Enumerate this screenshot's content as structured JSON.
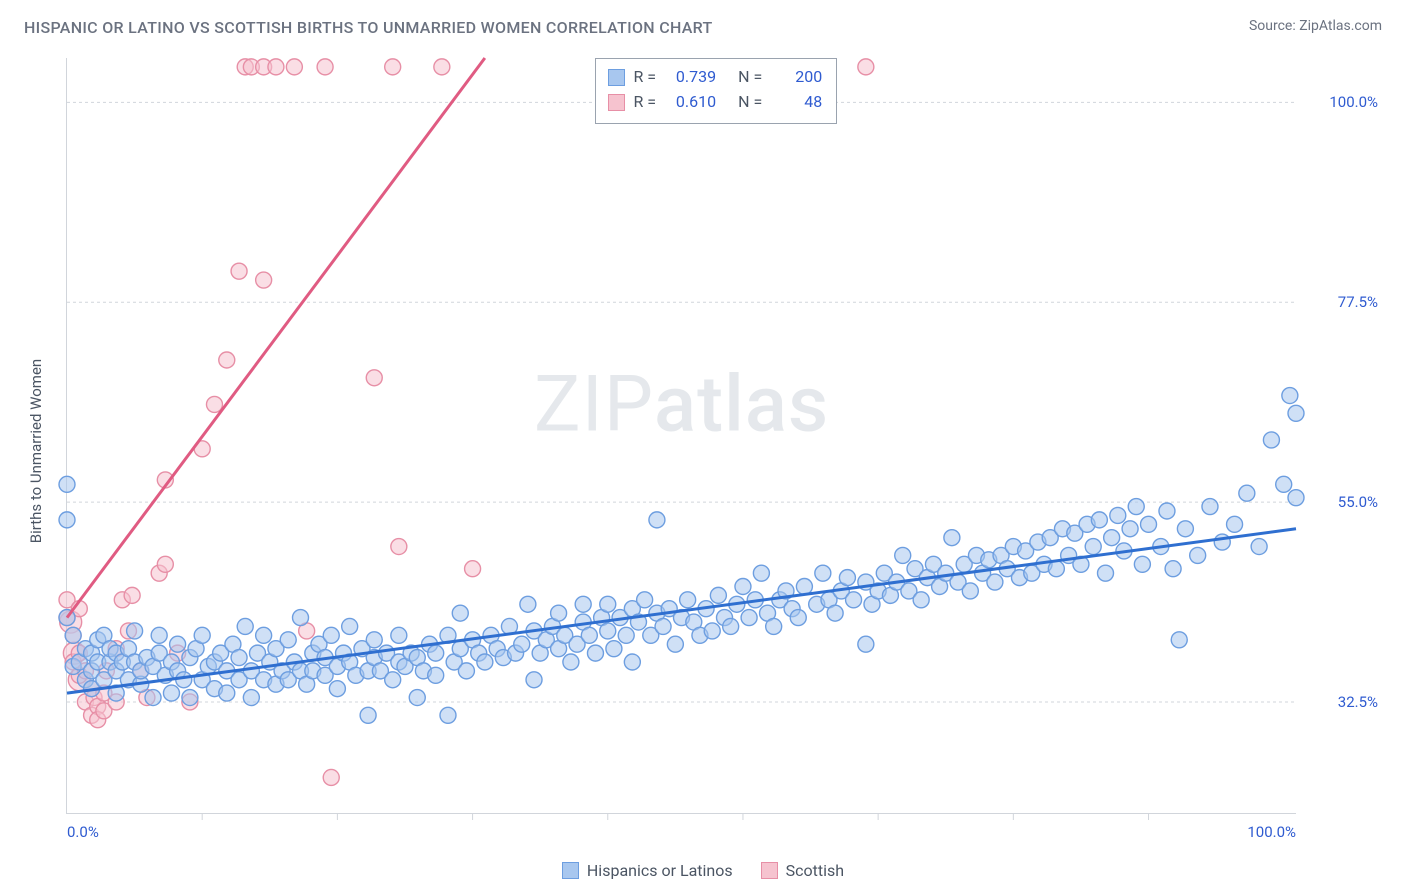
{
  "title": "HISPANIC OR LATINO VS SCOTTISH BIRTHS TO UNMARRIED WOMEN CORRELATION CHART",
  "source_label": "Source:",
  "source_site": "ZipAtlas.com",
  "watermark": "ZIPatlas",
  "ylabel": "Births to Unmarried Women",
  "chart": {
    "type": "scatter",
    "xlim": [
      0,
      100
    ],
    "ylim": [
      20,
      105
    ],
    "yticks": [
      32.5,
      55.0,
      77.5,
      100.0
    ],
    "ytick_labels": [
      "32.5%",
      "55.0%",
      "77.5%",
      "100.0%"
    ],
    "xticks_pos": [
      0,
      100
    ],
    "xtick_labels": [
      "0.0%",
      "100.0%"
    ],
    "xticks_minor": [
      11,
      22,
      33,
      44,
      55,
      66,
      77,
      88
    ],
    "grid_color": "#d1d5db",
    "grid_dash": "3 3",
    "background_color": "#ffffff",
    "axis_color": "#d1d5db",
    "tick_label_color": "#2f5bd0",
    "marker_radius": 8,
    "marker_radius_alt": 11,
    "marker_opacity": 0.55,
    "trend_width": 3,
    "colors": {
      "blue_fill": "#a8c7ef",
      "blue_stroke": "#6d9ee0",
      "blue_trend": "#2f6fd0",
      "pink_fill": "#f6c3cf",
      "pink_stroke": "#e78fa6",
      "pink_trend": "#e05b82"
    }
  },
  "series": {
    "blue": {
      "label": "Hispanics or Latinos",
      "R": "0.739",
      "N": "200",
      "trend": {
        "x1": 0,
        "y1": 33.5,
        "x2": 100,
        "y2": 52.0
      },
      "points": [
        [
          0,
          57
        ],
        [
          0,
          53
        ],
        [
          0,
          42
        ],
        [
          0.5,
          40
        ],
        [
          0.5,
          36.5
        ],
        [
          1,
          37
        ],
        [
          1.5,
          35
        ],
        [
          1.5,
          38.5
        ],
        [
          2,
          34
        ],
        [
          2,
          36
        ],
        [
          2,
          38
        ],
        [
          2.5,
          37
        ],
        [
          2.5,
          39.5
        ],
        [
          3,
          35
        ],
        [
          3,
          40
        ],
        [
          3.5,
          37
        ],
        [
          3.5,
          38.5
        ],
        [
          4,
          33.5
        ],
        [
          4,
          36
        ],
        [
          4,
          38
        ],
        [
          4.5,
          37
        ],
        [
          5,
          35
        ],
        [
          5,
          38.5
        ],
        [
          5.5,
          40.5
        ],
        [
          5.5,
          37
        ],
        [
          6,
          34.5
        ],
        [
          6,
          36
        ],
        [
          6.5,
          37.5
        ],
        [
          7,
          33
        ],
        [
          7,
          36.5
        ],
        [
          7.5,
          38
        ],
        [
          7.5,
          40
        ],
        [
          8,
          35.5
        ],
        [
          8.5,
          33.5
        ],
        [
          8.5,
          37
        ],
        [
          9,
          36
        ],
        [
          9,
          39
        ],
        [
          9.5,
          35
        ],
        [
          10,
          33
        ],
        [
          10,
          37.5
        ],
        [
          10.5,
          38.5
        ],
        [
          11,
          35
        ],
        [
          11,
          40
        ],
        [
          11.5,
          36.5
        ],
        [
          12,
          34
        ],
        [
          12,
          37
        ],
        [
          12.5,
          38
        ],
        [
          13,
          33.5
        ],
        [
          13,
          36
        ],
        [
          13.5,
          39
        ],
        [
          14,
          35
        ],
        [
          14,
          37.5
        ],
        [
          14.5,
          41
        ],
        [
          15,
          33
        ],
        [
          15,
          36
        ],
        [
          15.5,
          38
        ],
        [
          16,
          35
        ],
        [
          16,
          40
        ],
        [
          16.5,
          37
        ],
        [
          17,
          34.5
        ],
        [
          17,
          38.5
        ],
        [
          17.5,
          36
        ],
        [
          18,
          39.5
        ],
        [
          18,
          35
        ],
        [
          18.5,
          37
        ],
        [
          19,
          42
        ],
        [
          19,
          36
        ],
        [
          19.5,
          34.5
        ],
        [
          20,
          38
        ],
        [
          20,
          36
        ],
        [
          20.5,
          39
        ],
        [
          21,
          35.5
        ],
        [
          21,
          37.5
        ],
        [
          21.5,
          40
        ],
        [
          22,
          34
        ],
        [
          22,
          36.5
        ],
        [
          22.5,
          38
        ],
        [
          23,
          37
        ],
        [
          23,
          41
        ],
        [
          23.5,
          35.5
        ],
        [
          24,
          38.5
        ],
        [
          24.5,
          31
        ],
        [
          24.5,
          36
        ],
        [
          25,
          37.5
        ],
        [
          25,
          39.5
        ],
        [
          25.5,
          36
        ],
        [
          26,
          38
        ],
        [
          26.5,
          35
        ],
        [
          27,
          37
        ],
        [
          27,
          40
        ],
        [
          27.5,
          36.5
        ],
        [
          28,
          38
        ],
        [
          28.5,
          33
        ],
        [
          28.5,
          37.5
        ],
        [
          29,
          36
        ],
        [
          29.5,
          39
        ],
        [
          30,
          38
        ],
        [
          30,
          35.5
        ],
        [
          31,
          40
        ],
        [
          31,
          31
        ],
        [
          31.5,
          37
        ],
        [
          32,
          38.5
        ],
        [
          32,
          42.5
        ],
        [
          32.5,
          36
        ],
        [
          33,
          39.5
        ],
        [
          33.5,
          38
        ],
        [
          34,
          37
        ],
        [
          34.5,
          40
        ],
        [
          35,
          38.5
        ],
        [
          35.5,
          37.5
        ],
        [
          36,
          41
        ],
        [
          36.5,
          38
        ],
        [
          37,
          39
        ],
        [
          37.5,
          43.5
        ],
        [
          38,
          40.5
        ],
        [
          38,
          35
        ],
        [
          38.5,
          38
        ],
        [
          39,
          39.5
        ],
        [
          39.5,
          41
        ],
        [
          40,
          42.5
        ],
        [
          40,
          38.5
        ],
        [
          40.5,
          40
        ],
        [
          41,
          37
        ],
        [
          41.5,
          39
        ],
        [
          42,
          41.5
        ],
        [
          42,
          43.5
        ],
        [
          42.5,
          40
        ],
        [
          43,
          38
        ],
        [
          43.5,
          42
        ],
        [
          44,
          43.5
        ],
        [
          44,
          40.5
        ],
        [
          44.5,
          38.5
        ],
        [
          45,
          42
        ],
        [
          45.5,
          40
        ],
        [
          46,
          43
        ],
        [
          46,
          37
        ],
        [
          46.5,
          41.5
        ],
        [
          47,
          44
        ],
        [
          47.5,
          40
        ],
        [
          48,
          42.5
        ],
        [
          48,
          53
        ],
        [
          48.5,
          41
        ],
        [
          49,
          43
        ],
        [
          49.5,
          39
        ],
        [
          50,
          42
        ],
        [
          50.5,
          44
        ],
        [
          51,
          41.5
        ],
        [
          51.5,
          40
        ],
        [
          52,
          43
        ],
        [
          52.5,
          40.5
        ],
        [
          53,
          44.5
        ],
        [
          53.5,
          42
        ],
        [
          54,
          41
        ],
        [
          54.5,
          43.5
        ],
        [
          55,
          45.5
        ],
        [
          55.5,
          42
        ],
        [
          56,
          44
        ],
        [
          56.5,
          47
        ],
        [
          57,
          42.5
        ],
        [
          57.5,
          41
        ],
        [
          58,
          44
        ],
        [
          58.5,
          45
        ],
        [
          59,
          43
        ],
        [
          59.5,
          42
        ],
        [
          60,
          45.5
        ],
        [
          61,
          43.5
        ],
        [
          61.5,
          47
        ],
        [
          62,
          44
        ],
        [
          62.5,
          42.5
        ],
        [
          63,
          45
        ],
        [
          63.5,
          46.5
        ],
        [
          64,
          44
        ],
        [
          65,
          39
        ],
        [
          65,
          46
        ],
        [
          65.5,
          43.5
        ],
        [
          66,
          45
        ],
        [
          66.5,
          47
        ],
        [
          67,
          44.5
        ],
        [
          67.5,
          46
        ],
        [
          68,
          49
        ],
        [
          68.5,
          45
        ],
        [
          69,
          47.5
        ],
        [
          69.5,
          44
        ],
        [
          70,
          46.5
        ],
        [
          70.5,
          48
        ],
        [
          71,
          45.5
        ],
        [
          71.5,
          47
        ],
        [
          72,
          51
        ],
        [
          72.5,
          46
        ],
        [
          73,
          48
        ],
        [
          73.5,
          45
        ],
        [
          74,
          49
        ],
        [
          74.5,
          47
        ],
        [
          75,
          48.5
        ],
        [
          75.5,
          46
        ],
        [
          76,
          49
        ],
        [
          76.5,
          47.5
        ],
        [
          77,
          50
        ],
        [
          77.5,
          46.5
        ],
        [
          78,
          49.5
        ],
        [
          78.5,
          47
        ],
        [
          79,
          50.5
        ],
        [
          79.5,
          48
        ],
        [
          80,
          51
        ],
        [
          80.5,
          47.5
        ],
        [
          81,
          52
        ],
        [
          81.5,
          49
        ],
        [
          82,
          51.5
        ],
        [
          82.5,
          48
        ],
        [
          83,
          52.5
        ],
        [
          83.5,
          50
        ],
        [
          84,
          53
        ],
        [
          84.5,
          47
        ],
        [
          85,
          51
        ],
        [
          85.5,
          53.5
        ],
        [
          86,
          49.5
        ],
        [
          86.5,
          52
        ],
        [
          87,
          54.5
        ],
        [
          87.5,
          48
        ],
        [
          88,
          52.5
        ],
        [
          89,
          50
        ],
        [
          89.5,
          54
        ],
        [
          90,
          47.5
        ],
        [
          90.5,
          39.5
        ],
        [
          91,
          52
        ],
        [
          92,
          49
        ],
        [
          93,
          54.5
        ],
        [
          94,
          50.5
        ],
        [
          95,
          52.5
        ],
        [
          96,
          56
        ],
        [
          97,
          50
        ],
        [
          98,
          62
        ],
        [
          99,
          57
        ],
        [
          99.5,
          67
        ],
        [
          100,
          65
        ],
        [
          100,
          55.5
        ]
      ]
    },
    "pink": {
      "label": "Scottish",
      "R": "0.610",
      "N": "48",
      "trend": {
        "x1": 0,
        "y1": 42.0,
        "x2": 34,
        "y2": 105.0
      },
      "points": [
        [
          0,
          42
        ],
        [
          0,
          44
        ],
        [
          0.5,
          40
        ],
        [
          0.5,
          37
        ],
        [
          1,
          43
        ],
        [
          1,
          35.5
        ],
        [
          1,
          38
        ],
        [
          1.5,
          36
        ],
        [
          1.5,
          32.5
        ],
        [
          2,
          34
        ],
        [
          2,
          31
        ],
        [
          2.2,
          33
        ],
        [
          2.5,
          32
        ],
        [
          2.5,
          30.5
        ],
        [
          3,
          33.5
        ],
        [
          3,
          31.5
        ],
        [
          3.2,
          36
        ],
        [
          4,
          32.5
        ],
        [
          4.5,
          44
        ],
        [
          5,
          40.5
        ],
        [
          5.3,
          44.5
        ],
        [
          6,
          36
        ],
        [
          6.5,
          33
        ],
        [
          7.5,
          47
        ],
        [
          8,
          57.5
        ],
        [
          8,
          48
        ],
        [
          9,
          38
        ],
        [
          10,
          32.5
        ],
        [
          11,
          61
        ],
        [
          12,
          66
        ],
        [
          13,
          71
        ],
        [
          14,
          81
        ],
        [
          14.5,
          104
        ],
        [
          15,
          104
        ],
        [
          16,
          80
        ],
        [
          16,
          104
        ],
        [
          17,
          104
        ],
        [
          18.5,
          104
        ],
        [
          19.5,
          40.5
        ],
        [
          21,
          104
        ],
        [
          21.5,
          24
        ],
        [
          25,
          69
        ],
        [
          26.5,
          104
        ],
        [
          27,
          50
        ],
        [
          30.5,
          104
        ],
        [
          33,
          47.5
        ],
        [
          65,
          104
        ],
        [
          4,
          38.5
        ]
      ],
      "large_points": [
        [
          0.3,
          41.5
        ],
        [
          0.6,
          38
        ],
        [
          1,
          35
        ]
      ]
    }
  },
  "stats_box": {
    "r_label": "R =",
    "n_label": "N ="
  },
  "legend": {
    "items": [
      "blue",
      "pink"
    ]
  }
}
